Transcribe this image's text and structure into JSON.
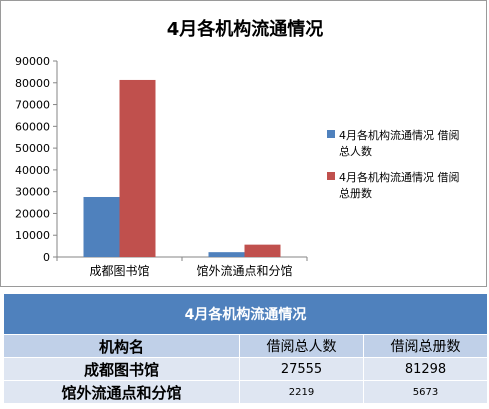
{
  "chart_data": {
    "type": "bar",
    "title": "4月各机构流通情况",
    "categories": [
      "成都图书馆",
      "馆外流通点和分馆"
    ],
    "series": [
      {
        "name": "4月各机构流通情况 借阅总人数",
        "values": [
          27555,
          2219
        ],
        "color": "#4f81bd"
      },
      {
        "name": "4月各机构流通情况 借阅总册数",
        "values": [
          81298,
          5673
        ],
        "color": "#c0504d"
      }
    ],
    "yticks": [
      0,
      10000,
      20000,
      30000,
      40000,
      50000,
      60000,
      70000,
      80000,
      90000
    ],
    "ylim": [
      0,
      90000
    ],
    "legend_position": "right",
    "grid": false
  },
  "table": {
    "title": "4月各机构流通情况",
    "headers": [
      "机构名",
      "借阅总人数",
      "借阅总册数"
    ],
    "rows": [
      [
        "成都图书馆",
        "27555",
        "81298"
      ],
      [
        "馆外流通点和分馆",
        "2219",
        "5673"
      ]
    ]
  }
}
